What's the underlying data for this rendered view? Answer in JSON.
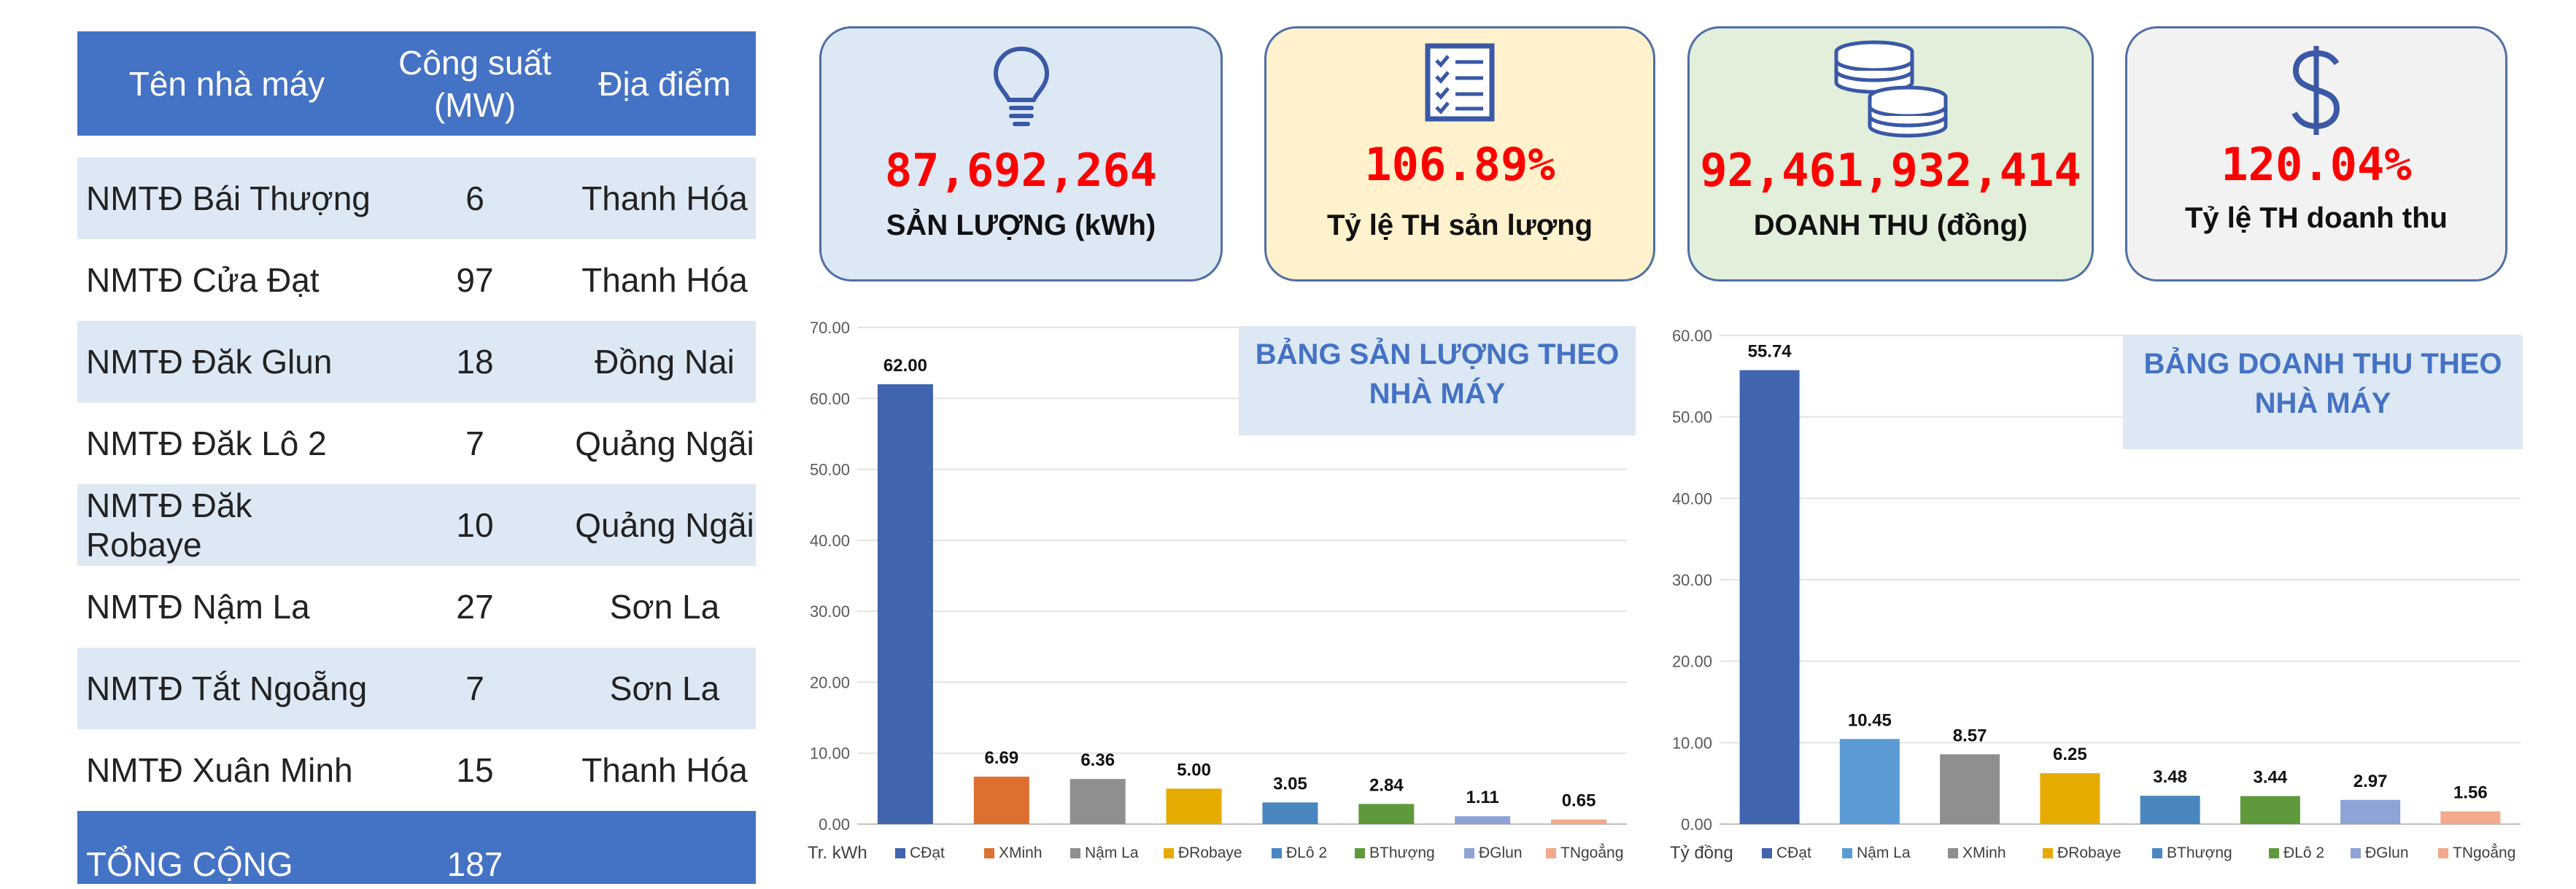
{
  "table": {
    "headers": [
      "Tên nhà máy",
      "Công suất (MW)",
      "Địa điểm"
    ],
    "header_capacity_line1": "Công suất",
    "header_capacity_line2": "(MW)",
    "rows": [
      {
        "name": "NMTĐ Bái Thượng",
        "capacity": "6",
        "location": "Thanh Hóa"
      },
      {
        "name": "NMTĐ Cửa Đạt",
        "capacity": "97",
        "location": "Thanh Hóa"
      },
      {
        "name": "NMTĐ Đăk Glun",
        "capacity": "18",
        "location": "Đồng Nai"
      },
      {
        "name": "NMTĐ Đăk Lô 2",
        "capacity": "7",
        "location": "Quảng Ngãi"
      },
      {
        "name": "NMTĐ Đăk Robaye",
        "capacity": "10",
        "location": "Quảng Ngãi"
      },
      {
        "name": "NMTĐ Nậm La",
        "capacity": "27",
        "location": "Sơn La"
      },
      {
        "name": "NMTĐ Tắt Ngoẵng",
        "capacity": "7",
        "location": "Sơn La"
      },
      {
        "name": "NMTĐ Xuân Minh",
        "capacity": "15",
        "location": "Thanh Hóa"
      }
    ],
    "total_label": "TỔNG CỘNG",
    "total_capacity": "187"
  },
  "kpis": [
    {
      "value": "87,692,264",
      "label": "SẢN LƯỢNG (kWh)",
      "icon": "lightbulb-icon"
    },
    {
      "value": "106.89%",
      "label": "Tỷ lệ TH sản lượng",
      "icon": "checklist-icon"
    },
    {
      "value": "92,461,932,414",
      "label": "DOANH THU (đồng)",
      "icon": "coins-icon"
    },
    {
      "value": "120.04%",
      "label": "Tỷ lệ TH doanh thu",
      "icon": "dollar-icon"
    }
  ],
  "colors": {
    "header_blue": "#4472c4",
    "row_alt": "#dde8f5",
    "kpi_value_red": "#ff0000"
  },
  "chart_data": [
    {
      "type": "bar",
      "title": "BẢNG SẢN LƯỢNG THEO NHÀ MÁY",
      "ylabel": "Tr. kWh",
      "ylim": [
        0,
        70
      ],
      "ytick_step": 10,
      "grid": true,
      "legend_position": "bottom",
      "categories": [
        "CĐạt",
        "XMinh",
        "Nậm La",
        "ĐRobaye",
        "ĐLô 2",
        "BThượng",
        "ĐGlun",
        "TNgoẳng"
      ],
      "values": [
        62.0,
        6.69,
        6.36,
        5.0,
        3.05,
        2.84,
        1.11,
        0.65
      ],
      "colors": [
        "#4064ad",
        "#dd7030",
        "#8f8f8f",
        "#e6ab00",
        "#4a86c0",
        "#5e9a3c",
        "#8ea3d6",
        "#f2a98c"
      ]
    },
    {
      "type": "bar",
      "title": "BẢNG DOANH THU THEO NHÀ MÁY",
      "ylabel": "Tỷ đồng",
      "ylim": [
        0,
        60
      ],
      "ytick_step": 10,
      "grid": true,
      "legend_position": "bottom",
      "categories": [
        "CĐạt",
        "Nậm La",
        "XMinh",
        "ĐRobaye",
        "BThượng",
        "ĐLô 2",
        "ĐGlun",
        "TNgoẳng"
      ],
      "values": [
        55.74,
        10.45,
        8.57,
        6.25,
        3.48,
        3.44,
        2.97,
        1.56
      ],
      "colors": [
        "#4064ad",
        "#5b9bd5",
        "#8f8f8f",
        "#e6ab00",
        "#4a86c0",
        "#5e9a3c",
        "#8ea3d6",
        "#f2a98c"
      ]
    }
  ]
}
